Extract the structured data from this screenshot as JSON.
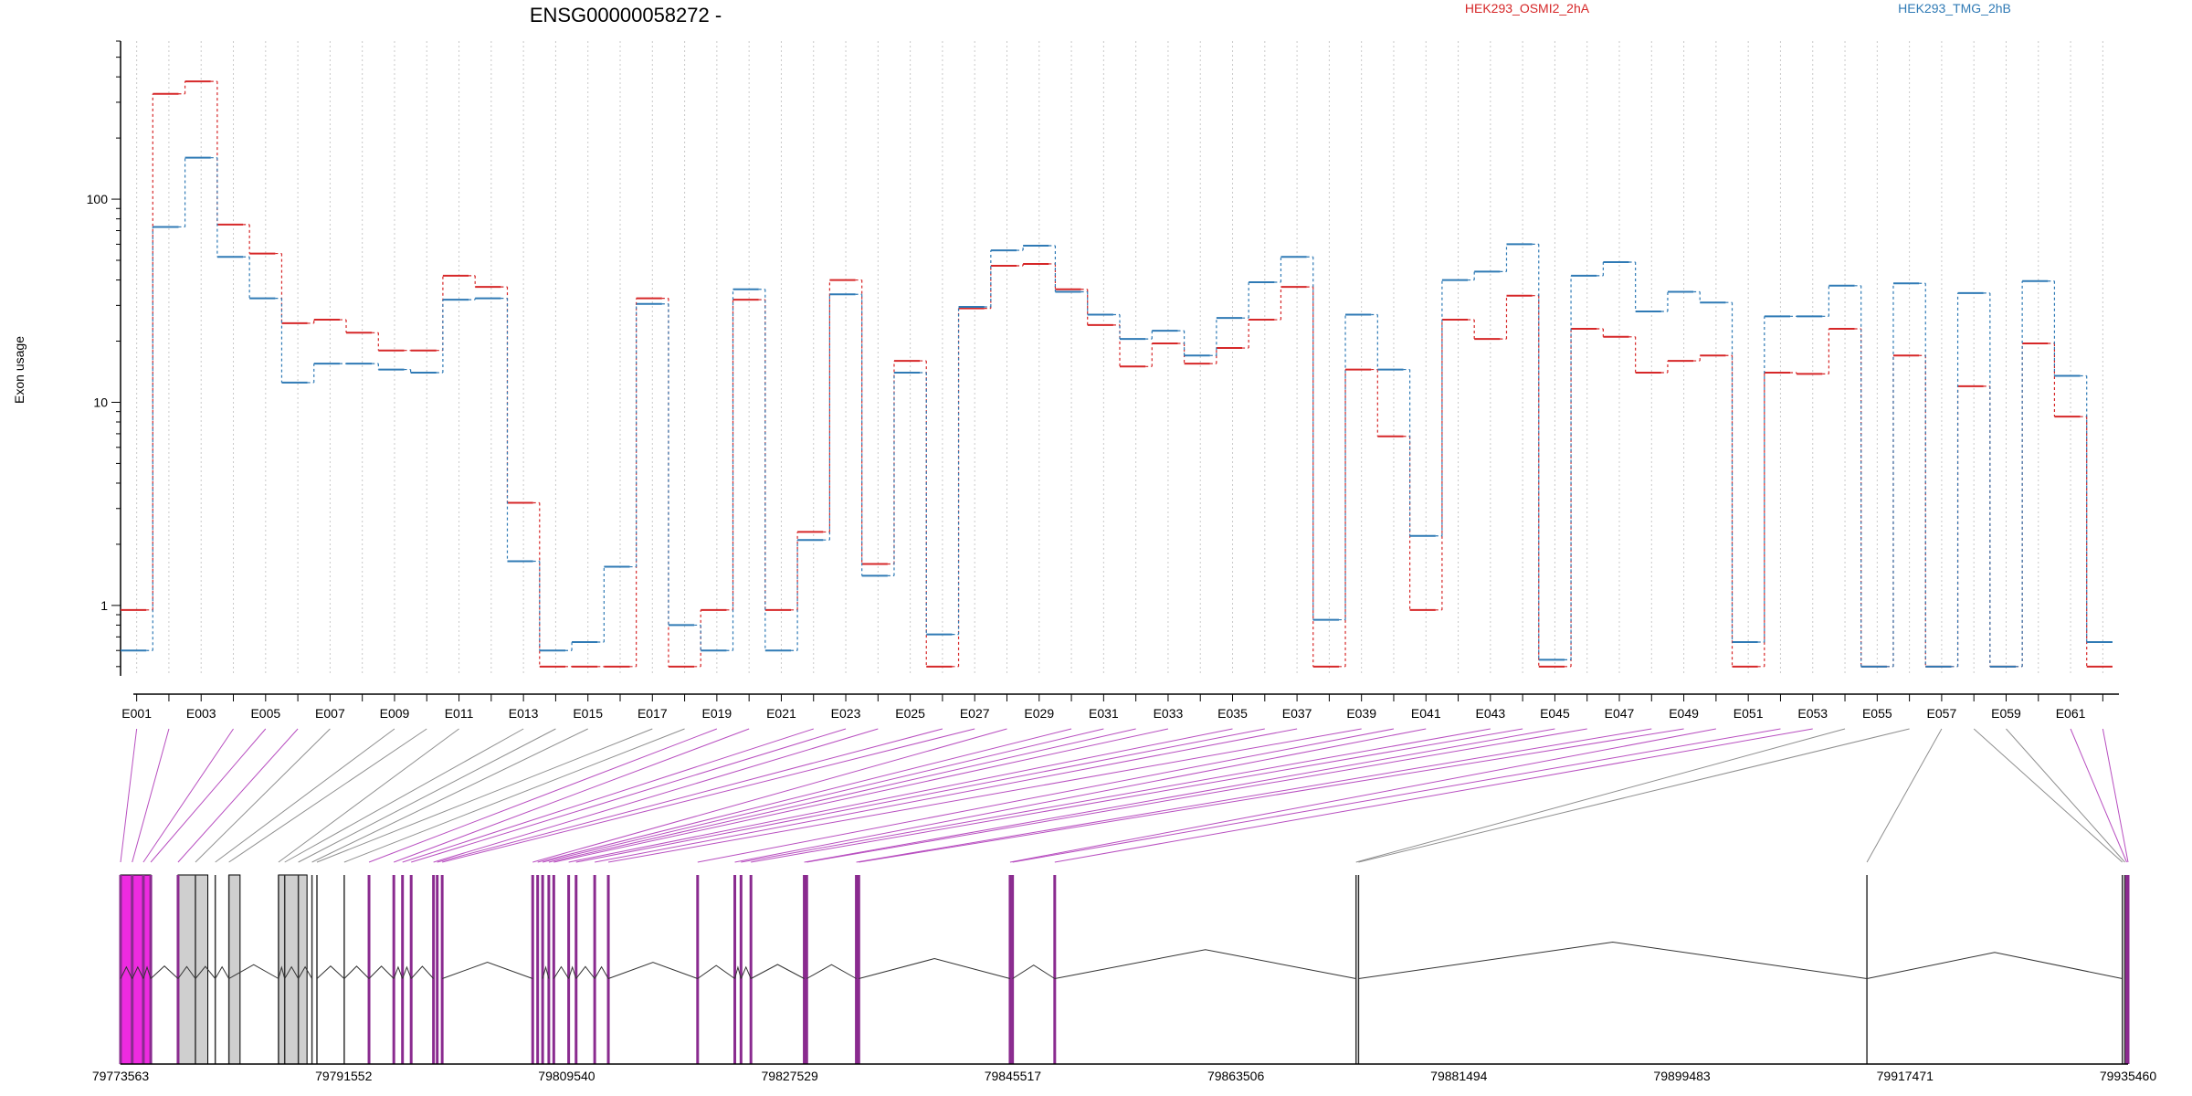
{
  "chart_data": {
    "type": "line",
    "title": "ENSG00000058272 -",
    "xlabel": "",
    "ylabel": "Exon usage",
    "y_scale": "log",
    "ylim": [
      0.45,
      600
    ],
    "y_ticks": [
      1,
      10,
      100
    ],
    "y_tick_labels": [
      "1",
      "10",
      "100"
    ],
    "grid": "vertical dotted lines per exon",
    "legend_placement": "top",
    "series": [
      {
        "name": "HEK293_OSMI2_2hA",
        "color": "#d62728",
        "values": [
          0.95,
          330,
          380,
          75,
          54,
          24.5,
          25.5,
          22,
          18,
          18,
          42,
          37,
          3.2,
          0.5,
          0.5,
          0.5,
          32.5,
          0.5,
          0.95,
          32,
          0.95,
          2.3,
          40,
          1.6,
          16,
          0.5,
          29,
          47,
          48,
          36,
          24,
          15,
          19.5,
          15.5,
          18.5,
          25.5,
          37,
          0.5,
          14.5,
          6.8,
          0.95,
          25.5,
          20.5,
          33.5,
          0.5,
          23,
          21,
          14,
          16,
          17,
          0.5,
          14,
          13.8,
          23,
          0.5,
          17,
          0.5,
          12,
          0.5,
          19.5,
          8.5,
          0.5
        ]
      },
      {
        "name": "HEK293_TMG_2hB",
        "color": "#2f7ab5",
        "values": [
          0.6,
          73,
          160,
          52,
          32.5,
          12.5,
          15.5,
          15.5,
          14.5,
          14,
          32,
          32.5,
          1.65,
          0.6,
          0.66,
          1.55,
          30.5,
          0.8,
          0.6,
          36,
          0.6,
          2.1,
          34,
          1.4,
          14,
          0.72,
          29.5,
          56,
          59,
          35,
          27,
          20.5,
          22.5,
          17,
          26,
          39,
          52,
          0.85,
          27,
          14.5,
          2.2,
          40,
          44,
          60,
          0.54,
          42,
          49,
          28,
          35,
          31,
          0.66,
          26.5,
          26.5,
          37.5,
          0.5,
          38.5,
          0.5,
          34.5,
          0.5,
          39.5,
          13.5,
          0.66
        ]
      }
    ],
    "exon_ticks": [
      "E001",
      "E003",
      "E005",
      "E007",
      "E009",
      "E011",
      "E013",
      "E015",
      "E017",
      "E019",
      "E021",
      "E023",
      "E025",
      "E027",
      "E029",
      "E031",
      "E033",
      "E035",
      "E037",
      "E039",
      "E041",
      "E043",
      "E045",
      "E047",
      "E049",
      "E051",
      "E053",
      "E055",
      "E057",
      "E059",
      "E061"
    ],
    "genomic_range": [
      79773563,
      79935460
    ],
    "genomic_ticks": [
      "79773563",
      "79791552",
      "79809540",
      "79827529",
      "79845517",
      "79863506",
      "79881494",
      "79899483",
      "79917471",
      "79935460"
    ],
    "exon_positions": [
      79773563,
      79774500,
      79775400,
      79776000,
      79778200,
      79779600,
      79781200,
      79782300,
      79786300,
      79786800,
      79787900,
      79789000,
      79789400,
      79791600,
      79793600,
      79795600,
      79796300,
      79797000,
      79798800,
      79799100,
      79799500,
      79806800,
      79807200,
      79807600,
      79808100,
      79808500,
      79809700,
      79810300,
      79811800,
      79812900,
      79820100,
      79823100,
      79823600,
      79824400,
      79828700,
      79828900,
      79832900,
      79833100,
      79845300,
      79845500,
      79848900,
      79873200,
      79873400,
      79914400,
      79935000,
      79935200,
      79935350,
      79935460
    ],
    "exon_colors_note": "magenta = differentially used, gray = other"
  }
}
